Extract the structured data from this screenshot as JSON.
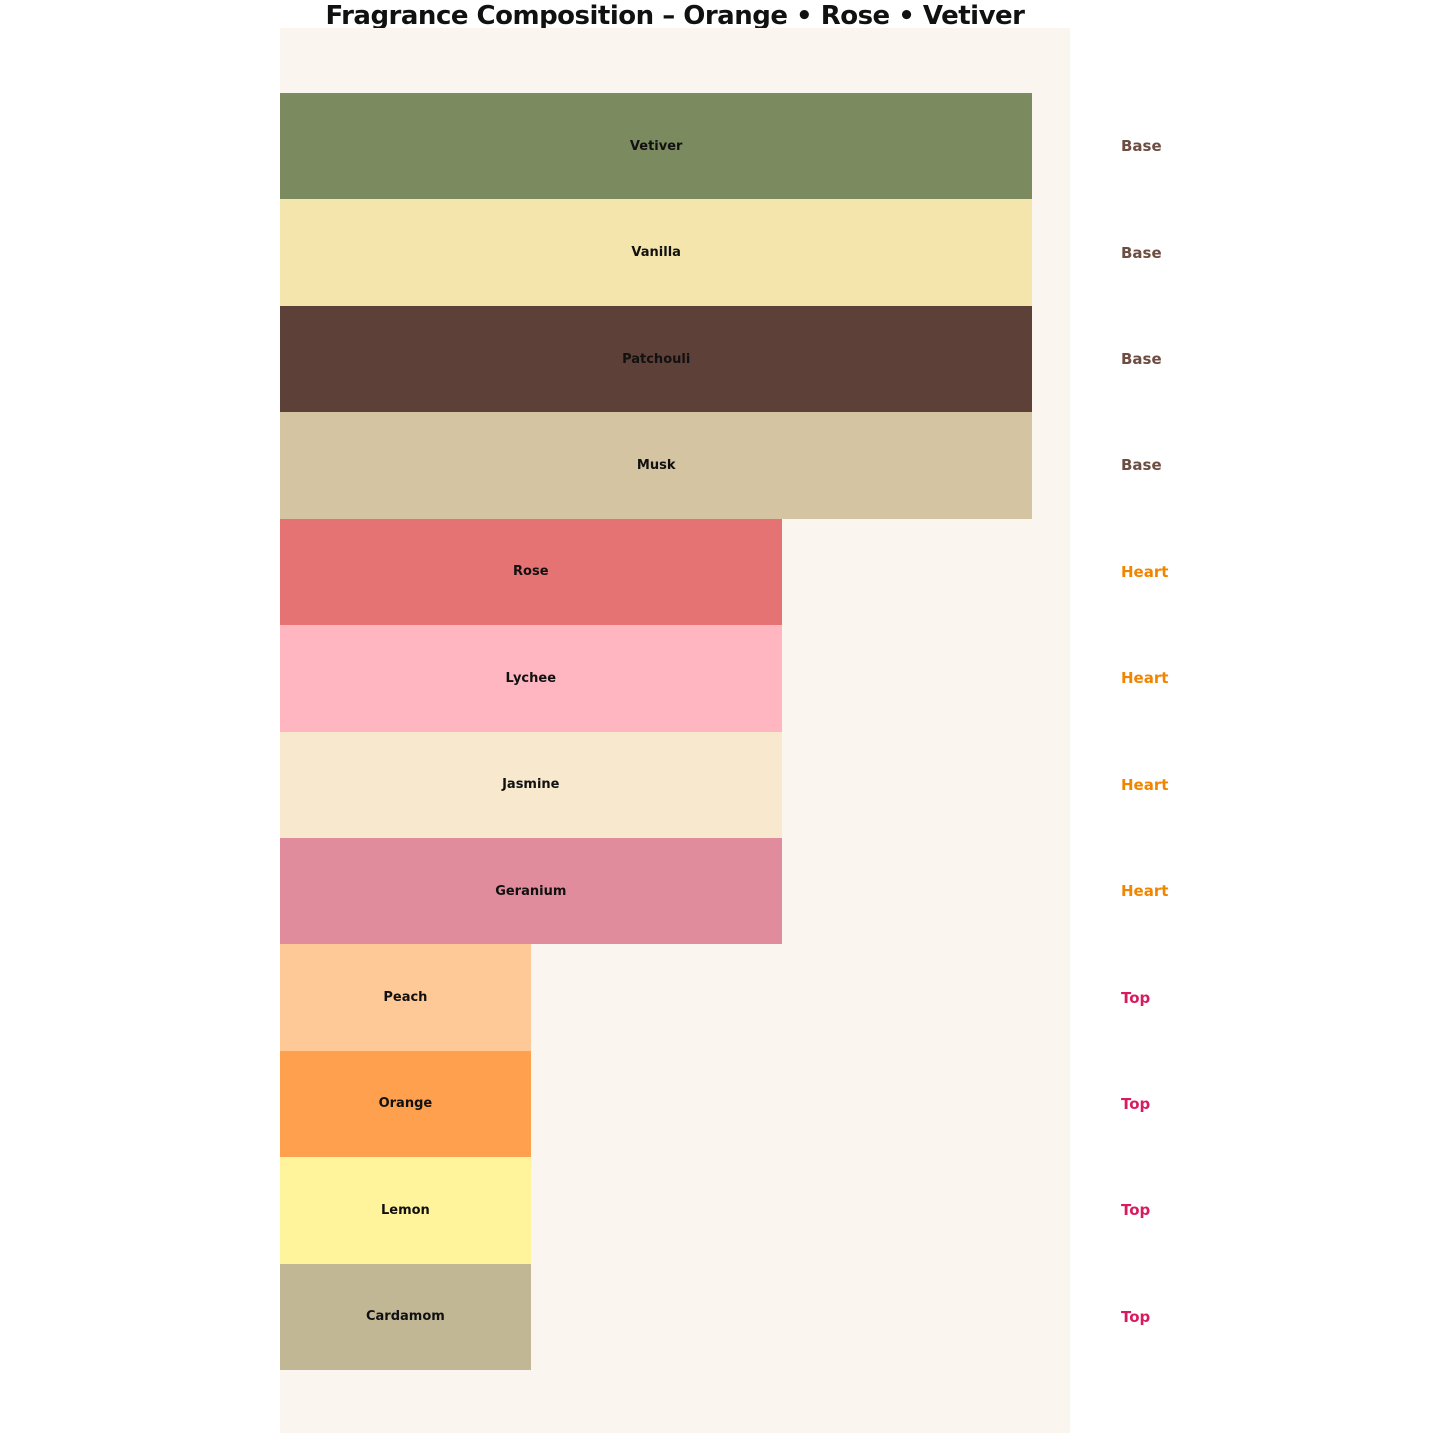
{
  "title": "Fragrance Composition – Orange • Rose • Vetiver",
  "colors": {
    "page_background": "#FFFFFF",
    "plot_background": "#FAF5EE",
    "title_text": "#111111",
    "bar_label_text": "#111111",
    "tier_label_colors": {
      "Base": "#6D4C41",
      "Heart": "#F28500",
      "Top": "#D81B60"
    }
  },
  "chart_data": {
    "type": "bar",
    "orientation": "horizontal",
    "title": "Fragrance Composition – Orange • Rose • Vetiver",
    "xlabel": "",
    "ylabel": "",
    "grid": false,
    "xlim": [
      0,
      3.15
    ],
    "categories": [
      "Vetiver",
      "Vanilla",
      "Patchouli",
      "Musk",
      "Rose",
      "Lychee",
      "Jasmine",
      "Geranium",
      "Peach",
      "Orange",
      "Lemon",
      "Cardamom"
    ],
    "values": [
      3,
      3,
      3,
      3,
      2,
      2,
      2,
      2,
      1,
      1,
      1,
      1
    ],
    "tiers": [
      "Base",
      "Base",
      "Base",
      "Base",
      "Heart",
      "Heart",
      "Heart",
      "Heart",
      "Top",
      "Top",
      "Top",
      "Top"
    ],
    "bar_colors": [
      "#7C8A5F",
      "#F3E5AB",
      "#5D4037",
      "#D4C4A1",
      "#E57373",
      "#FFB6C1",
      "#F7E8CE",
      "#E08C9D",
      "#FFC997",
      "#FFA04E",
      "#FFF49C",
      "#C2B795"
    ],
    "bar_label_position": "inside-center",
    "tier_label_position": "right-of-plot",
    "legend_position": "none"
  }
}
